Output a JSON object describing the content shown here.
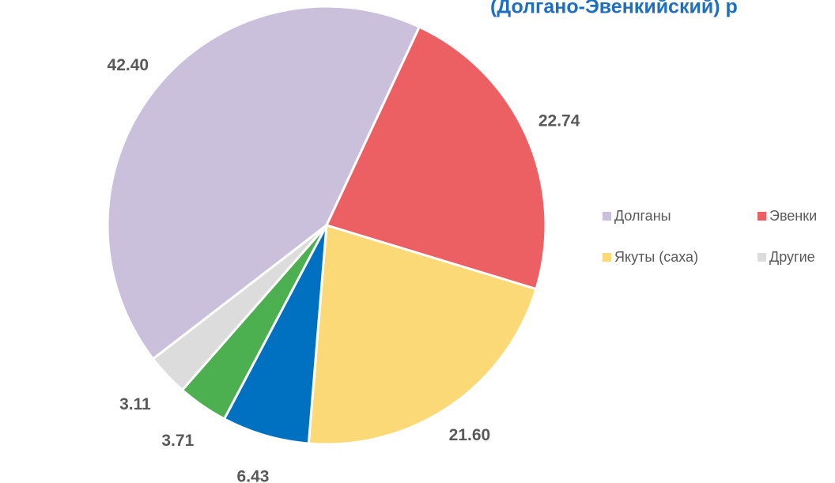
{
  "chart_data": {
    "type": "pie",
    "title": "(Долгано-Эвенкийский) р",
    "categories": [
      "Долганы",
      "Эвенки",
      "Якуты (саха)",
      null,
      null,
      "Другие"
    ],
    "values": [
      42.4,
      22.74,
      21.6,
      6.43,
      3.71,
      3.11
    ],
    "value_labels": [
      "42.40",
      "22.74",
      "21.60",
      "6.43",
      "3.71",
      "3.11"
    ],
    "colors": [
      "#cbc0dc",
      "#ec6064",
      "#fcd977",
      "#0070c0",
      "#4caf50",
      "#dcdcdc"
    ]
  }
}
